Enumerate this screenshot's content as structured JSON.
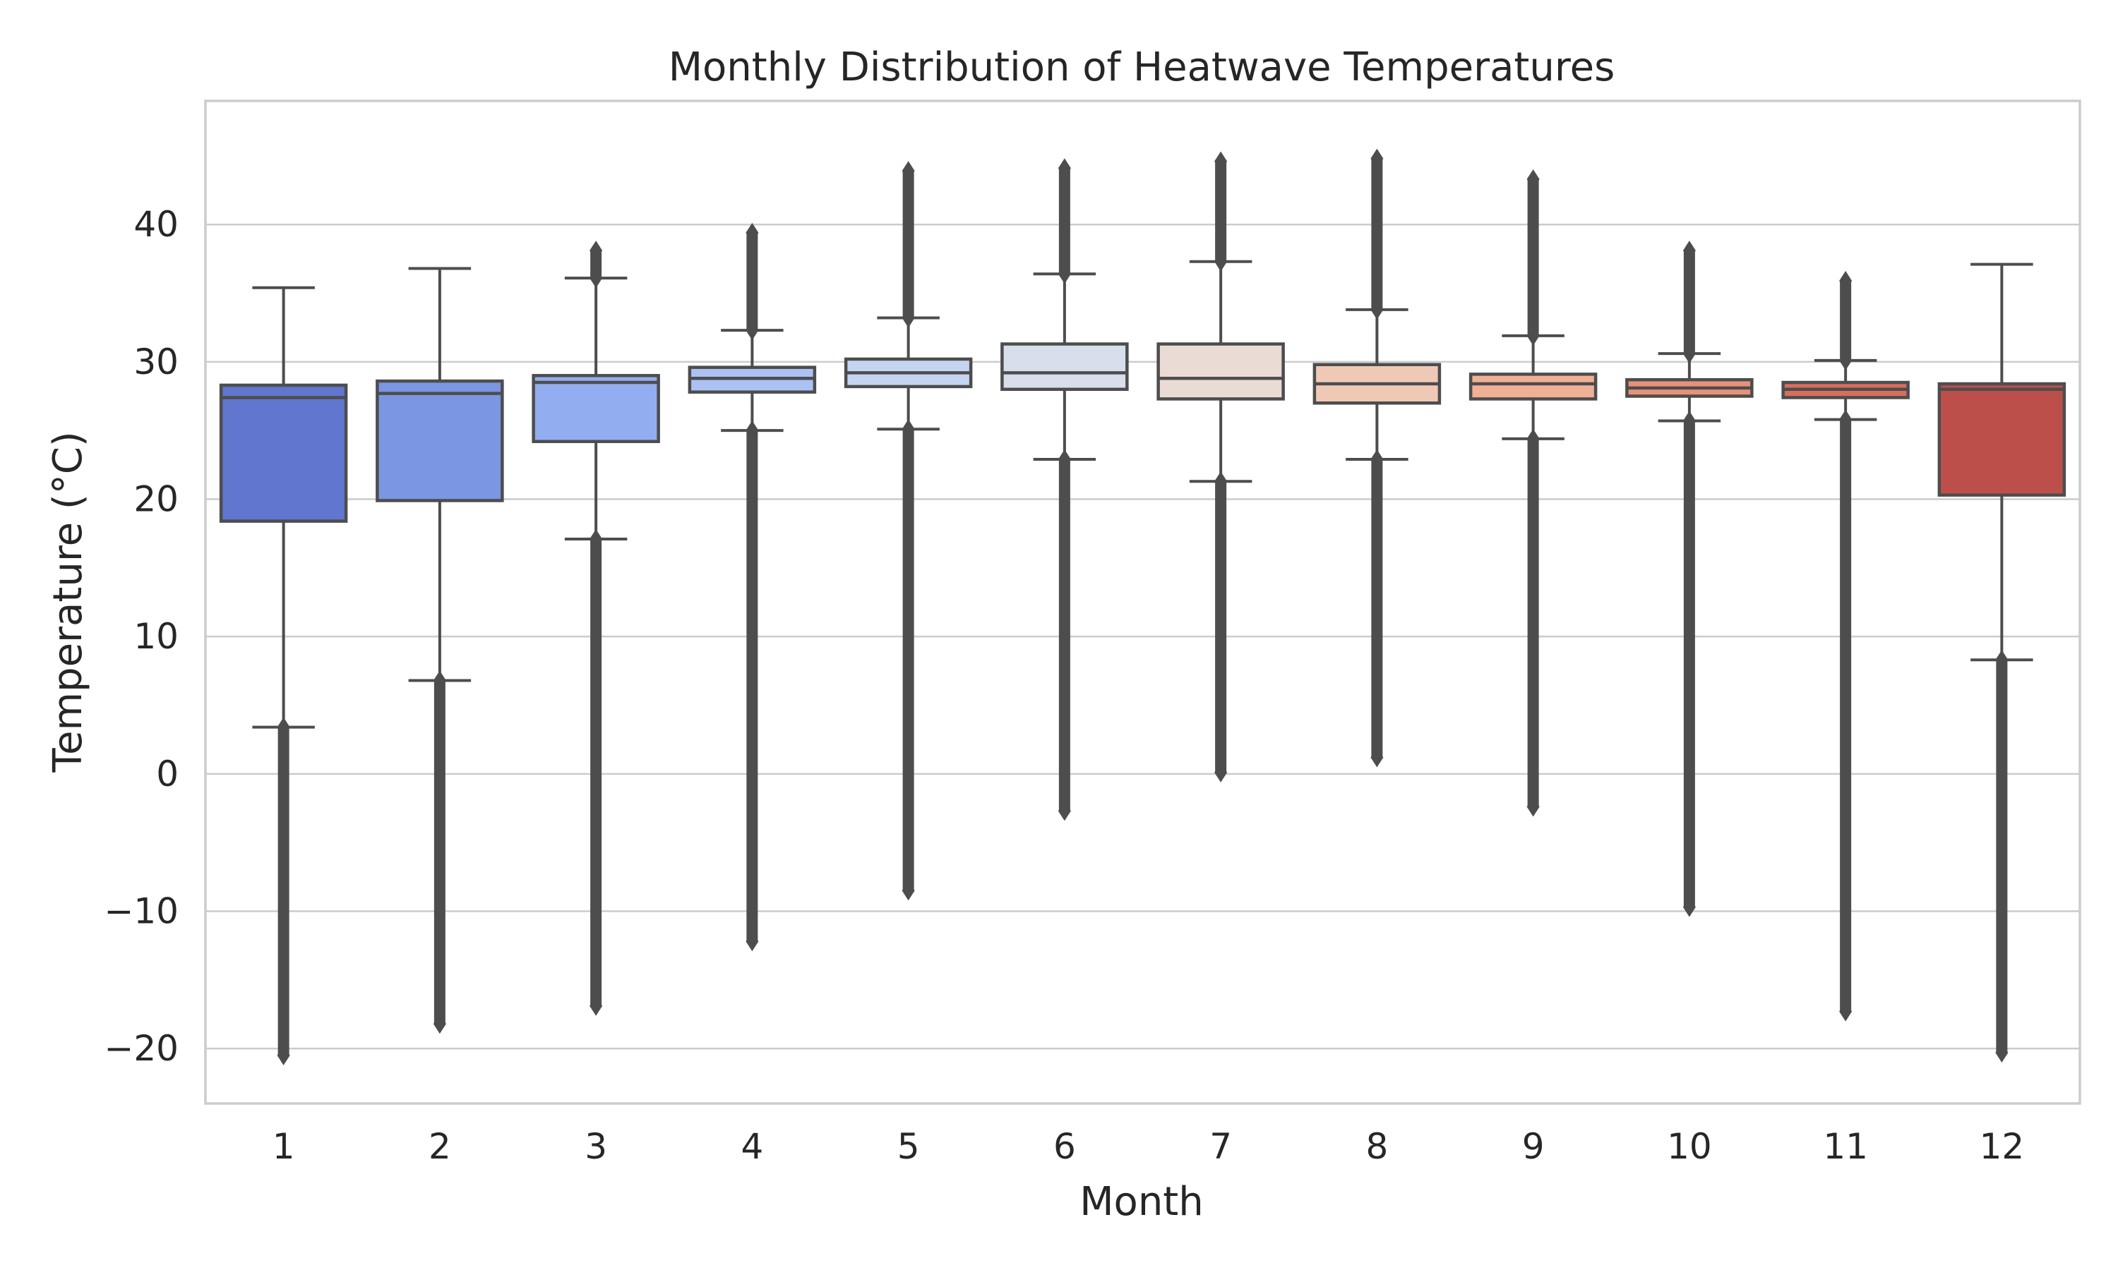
{
  "chart_data": {
    "type": "box",
    "title": "Monthly Distribution of Heatwave Temperatures",
    "xlabel": "Month",
    "ylabel": "Temperature (°C)",
    "categories": [
      "1",
      "2",
      "3",
      "4",
      "5",
      "6",
      "7",
      "8",
      "9",
      "10",
      "11",
      "12"
    ],
    "ylim": [
      -24,
      49
    ],
    "yticks": [
      -20,
      -10,
      0,
      10,
      20,
      30,
      40
    ],
    "ytick_labels": [
      "−20",
      "−10",
      "0",
      "10",
      "20",
      "30",
      "40"
    ],
    "grid": true,
    "colors": [
      "#6076cf",
      "#7b96e3",
      "#93aef0",
      "#abc2f3",
      "#c5d5f1",
      "#d6dfeb",
      "#eadcd5",
      "#f0c9b6",
      "#f0b096",
      "#e8917a",
      "#d96e5c",
      "#bd4f4a"
    ],
    "boxes": [
      {
        "month": "1",
        "whislo": 3.4,
        "q1": 18.4,
        "med": 27.4,
        "q3": 28.3,
        "whishi": 35.4,
        "outliers_low": [
          -20.5,
          3.4
        ],
        "outliers_high": null
      },
      {
        "month": "2",
        "whislo": 6.8,
        "q1": 19.9,
        "med": 27.7,
        "q3": 28.6,
        "whishi": 36.8,
        "outliers_low": [
          -18.2,
          6.8
        ],
        "outliers_high": null
      },
      {
        "month": "3",
        "whislo": 17.1,
        "q1": 24.2,
        "med": 28.5,
        "q3": 29.0,
        "whishi": 36.1,
        "outliers_low": [
          -16.9,
          17.1
        ],
        "outliers_high": [
          36.1,
          38.1
        ]
      },
      {
        "month": "4",
        "whislo": 25.0,
        "q1": 27.8,
        "med": 28.8,
        "q3": 29.6,
        "whishi": 32.3,
        "outliers_low": [
          -12.2,
          25.0
        ],
        "outliers_high": [
          32.3,
          39.4
        ]
      },
      {
        "month": "5",
        "whislo": 25.1,
        "q1": 28.2,
        "med": 29.2,
        "q3": 30.2,
        "whishi": 33.2,
        "outliers_low": [
          -8.5,
          25.1
        ],
        "outliers_high": [
          33.2,
          43.9
        ]
      },
      {
        "month": "6",
        "whislo": 22.9,
        "q1": 28.0,
        "med": 29.2,
        "q3": 31.3,
        "whishi": 36.4,
        "outliers_low": [
          -2.7,
          22.9
        ],
        "outliers_high": [
          36.4,
          44.1
        ]
      },
      {
        "month": "7",
        "whislo": 21.3,
        "q1": 27.3,
        "med": 28.8,
        "q3": 31.3,
        "whishi": 37.3,
        "outliers_low": [
          0.1,
          21.3
        ],
        "outliers_high": [
          37.3,
          44.6
        ]
      },
      {
        "month": "8",
        "whislo": 22.9,
        "q1": 27.0,
        "med": 28.4,
        "q3": 29.8,
        "whishi": 33.8,
        "outliers_low": [
          1.2,
          22.9
        ],
        "outliers_high": [
          33.8,
          44.8
        ]
      },
      {
        "month": "9",
        "whislo": 24.4,
        "q1": 27.3,
        "med": 28.4,
        "q3": 29.1,
        "whishi": 31.9,
        "outliers_low": [
          -2.4,
          24.4
        ],
        "outliers_high": [
          31.9,
          43.3
        ]
      },
      {
        "month": "10",
        "whislo": 25.7,
        "q1": 27.5,
        "med": 28.1,
        "q3": 28.7,
        "whishi": 30.6,
        "outliers_low": [
          -9.7,
          25.7
        ],
        "outliers_high": [
          30.6,
          38.1
        ]
      },
      {
        "month": "11",
        "whislo": 25.8,
        "q1": 27.4,
        "med": 28.0,
        "q3": 28.5,
        "whishi": 30.1,
        "outliers_low": [
          -17.3,
          25.8
        ],
        "outliers_high": [
          30.1,
          35.9
        ]
      },
      {
        "month": "12",
        "whislo": 8.3,
        "q1": 20.3,
        "med": 28.0,
        "q3": 28.4,
        "whishi": 37.1,
        "outliers_low": [
          -20.3,
          8.3
        ],
        "outliers_high": null
      }
    ]
  }
}
